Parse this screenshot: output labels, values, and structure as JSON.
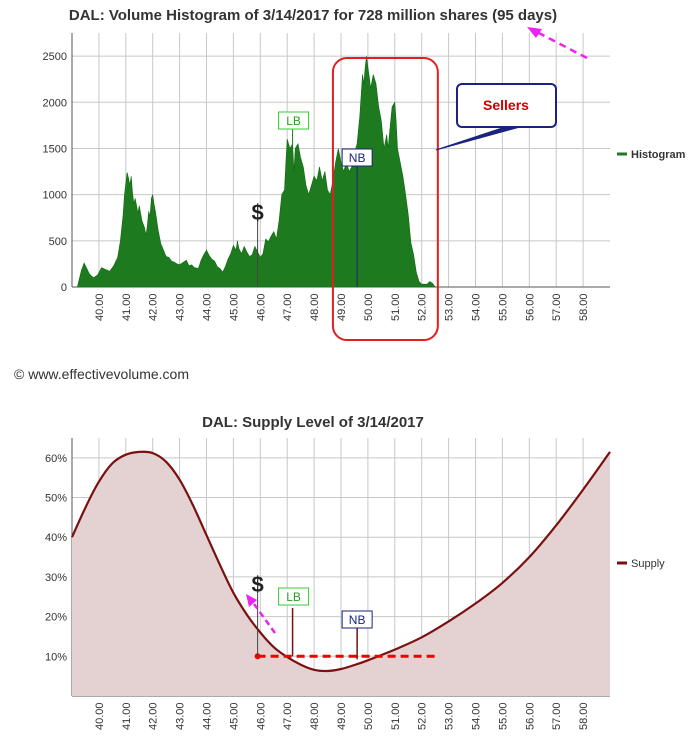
{
  "copyright": "© www.effectivevolume.com",
  "chart_data": [
    {
      "type": "area",
      "title": "DAL: Volume Histogram of 3/14/2017 for 728 million shares (95 days)",
      "legend": "Histogram",
      "legend_position": "right",
      "color": "#1e7a1e",
      "grid": true,
      "xlim": [
        39.0,
        59.0
      ],
      "ylim": [
        0,
        2750
      ],
      "x_ticks": [
        "40.00",
        "41.00",
        "42.00",
        "43.00",
        "44.00",
        "45.00",
        "46.00",
        "47.00",
        "48.00",
        "49.00",
        "50.00",
        "51.00",
        "52.00",
        "53.00",
        "54.00",
        "55.00",
        "56.00",
        "57.00",
        "58.00"
      ],
      "y_ticks": [
        0,
        500,
        1000,
        1500,
        2000,
        2500
      ],
      "profile": [
        [
          39.2,
          0
        ],
        [
          39.25,
          60
        ],
        [
          39.35,
          180
        ],
        [
          39.45,
          260
        ],
        [
          39.55,
          200
        ],
        [
          39.65,
          140
        ],
        [
          39.8,
          100
        ],
        [
          39.95,
          130
        ],
        [
          40.1,
          210
        ],
        [
          40.25,
          190
        ],
        [
          40.4,
          170
        ],
        [
          40.55,
          230
        ],
        [
          40.7,
          320
        ],
        [
          40.8,
          500
        ],
        [
          40.9,
          780
        ],
        [
          40.95,
          1000
        ],
        [
          41.0,
          1120
        ],
        [
          41.05,
          1240
        ],
        [
          41.1,
          1180
        ],
        [
          41.15,
          1100
        ],
        [
          41.2,
          1200
        ],
        [
          41.25,
          1020
        ],
        [
          41.3,
          900
        ],
        [
          41.35,
          960
        ],
        [
          41.45,
          800
        ],
        [
          41.5,
          880
        ],
        [
          41.6,
          720
        ],
        [
          41.7,
          640
        ],
        [
          41.75,
          560
        ],
        [
          41.8,
          660
        ],
        [
          41.85,
          820
        ],
        [
          41.9,
          760
        ],
        [
          41.95,
          960
        ],
        [
          42.0,
          1000
        ],
        [
          42.05,
          900
        ],
        [
          42.1,
          820
        ],
        [
          42.2,
          620
        ],
        [
          42.3,
          470
        ],
        [
          42.4,
          400
        ],
        [
          42.5,
          330
        ],
        [
          42.6,
          320
        ],
        [
          42.7,
          280
        ],
        [
          42.8,
          270
        ],
        [
          42.9,
          250
        ],
        [
          43.0,
          240
        ],
        [
          43.15,
          270
        ],
        [
          43.25,
          290
        ],
        [
          43.35,
          230
        ],
        [
          43.45,
          240
        ],
        [
          43.55,
          210
        ],
        [
          43.7,
          200
        ],
        [
          43.8,
          290
        ],
        [
          43.9,
          350
        ],
        [
          44.0,
          400
        ],
        [
          44.1,
          340
        ],
        [
          44.2,
          300
        ],
        [
          44.3,
          280
        ],
        [
          44.4,
          220
        ],
        [
          44.5,
          200
        ],
        [
          44.6,
          160
        ],
        [
          44.7,
          220
        ],
        [
          44.8,
          300
        ],
        [
          44.9,
          360
        ],
        [
          45.0,
          450
        ],
        [
          45.1,
          400
        ],
        [
          45.15,
          500
        ],
        [
          45.2,
          420
        ],
        [
          45.3,
          360
        ],
        [
          45.4,
          440
        ],
        [
          45.5,
          380
        ],
        [
          45.6,
          330
        ],
        [
          45.7,
          350
        ],
        [
          45.8,
          440
        ],
        [
          45.9,
          380
        ],
        [
          46.0,
          320
        ],
        [
          46.1,
          360
        ],
        [
          46.2,
          520
        ],
        [
          46.3,
          490
        ],
        [
          46.4,
          550
        ],
        [
          46.5,
          600
        ],
        [
          46.6,
          520
        ],
        [
          46.7,
          720
        ],
        [
          46.8,
          1000
        ],
        [
          46.9,
          1050
        ],
        [
          46.95,
          1350
        ],
        [
          47.0,
          1600
        ],
        [
          47.1,
          1500
        ],
        [
          47.2,
          1550
        ],
        [
          47.25,
          1250
        ],
        [
          47.3,
          1500
        ],
        [
          47.4,
          1550
        ],
        [
          47.5,
          1400
        ],
        [
          47.6,
          1300
        ],
        [
          47.7,
          1100
        ],
        [
          47.8,
          1000
        ],
        [
          47.9,
          1100
        ],
        [
          48.0,
          1200
        ],
        [
          48.1,
          1150
        ],
        [
          48.2,
          1300
        ],
        [
          48.3,
          1150
        ],
        [
          48.4,
          1250
        ],
        [
          48.5,
          1050
        ],
        [
          48.6,
          1000
        ],
        [
          48.7,
          1150
        ],
        [
          48.8,
          1350
        ],
        [
          48.9,
          1500
        ],
        [
          49.0,
          1350
        ],
        [
          49.1,
          1250
        ],
        [
          49.2,
          1350
        ],
        [
          49.3,
          1250
        ],
        [
          49.4,
          1300
        ],
        [
          49.5,
          1450
        ],
        [
          49.6,
          1550
        ],
        [
          49.7,
          1850
        ],
        [
          49.8,
          2300
        ],
        [
          49.85,
          2200
        ],
        [
          49.9,
          2380
        ],
        [
          49.95,
          2500
        ],
        [
          50.0,
          2380
        ],
        [
          50.05,
          2280
        ],
        [
          50.1,
          2150
        ],
        [
          50.2,
          2300
        ],
        [
          50.3,
          2200
        ],
        [
          50.4,
          1950
        ],
        [
          50.5,
          1800
        ],
        [
          50.6,
          1500
        ],
        [
          50.7,
          1650
        ],
        [
          50.75,
          1500
        ],
        [
          50.8,
          1650
        ],
        [
          50.9,
          1950
        ],
        [
          51.0,
          2000
        ],
        [
          51.05,
          1800
        ],
        [
          51.1,
          1500
        ],
        [
          51.2,
          1350
        ],
        [
          51.3,
          1200
        ],
        [
          51.4,
          1000
        ],
        [
          51.5,
          780
        ],
        [
          51.6,
          480
        ],
        [
          51.7,
          350
        ],
        [
          51.8,
          160
        ],
        [
          51.9,
          60
        ],
        [
          52.0,
          30
        ],
        [
          52.2,
          30
        ],
        [
          52.3,
          60
        ],
        [
          52.4,
          40
        ],
        [
          52.5,
          0
        ]
      ],
      "annotations": [
        "LB",
        "NB",
        "$",
        "Sellers"
      ],
      "markers": {
        "dollar_x": 45.9,
        "lb_x": 47.2,
        "nb_x": 49.6,
        "sellers_range": [
          48.7,
          52.6
        ]
      }
    },
    {
      "type": "area",
      "title": "DAL: Supply Level of 3/14/2017",
      "legend": "Supply",
      "legend_position": "right",
      "color": "#7a1010",
      "grid": true,
      "xlim": [
        39.0,
        59.0
      ],
      "ylim": [
        0,
        65
      ],
      "x_ticks": [
        "40.00",
        "41.00",
        "42.00",
        "43.00",
        "44.00",
        "45.00",
        "46.00",
        "47.00",
        "48.00",
        "49.00",
        "50.00",
        "51.00",
        "52.00",
        "53.00",
        "54.00",
        "55.00",
        "56.00",
        "57.00",
        "58.00"
      ],
      "y_ticks": [
        "10%",
        "20%",
        "30%",
        "40%",
        "50%",
        "60%"
      ],
      "y_tick_values": [
        10,
        20,
        30,
        40,
        50,
        60
      ],
      "curve": [
        [
          39.0,
          40.0
        ],
        [
          39.5,
          47.5
        ],
        [
          40.0,
          54.0
        ],
        [
          40.5,
          58.6
        ],
        [
          41.0,
          60.8
        ],
        [
          41.5,
          61.5
        ],
        [
          42.0,
          61.2
        ],
        [
          42.5,
          59.0
        ],
        [
          43.0,
          54.5
        ],
        [
          43.5,
          48.0
        ],
        [
          44.0,
          40.5
        ],
        [
          44.5,
          33.0
        ],
        [
          45.0,
          26.0
        ],
        [
          45.5,
          20.5
        ],
        [
          46.0,
          16.0
        ],
        [
          46.5,
          12.3
        ],
        [
          47.0,
          9.8
        ],
        [
          47.5,
          7.9
        ],
        [
          48.0,
          6.6
        ],
        [
          48.5,
          6.3
        ],
        [
          49.0,
          6.8
        ],
        [
          49.5,
          7.8
        ],
        [
          50.0,
          9.0
        ],
        [
          51.0,
          11.7
        ],
        [
          52.0,
          14.8
        ],
        [
          53.0,
          18.8
        ],
        [
          54.0,
          23.3
        ],
        [
          55.0,
          28.5
        ],
        [
          56.0,
          35.0
        ],
        [
          57.0,
          43.0
        ],
        [
          58.0,
          52.0
        ],
        [
          59.0,
          61.5
        ]
      ],
      "threshold_line": {
        "value": 10,
        "from_x": 45.9,
        "to_x": 52.6
      },
      "annotations": [
        "LB",
        "NB",
        "$"
      ]
    }
  ]
}
